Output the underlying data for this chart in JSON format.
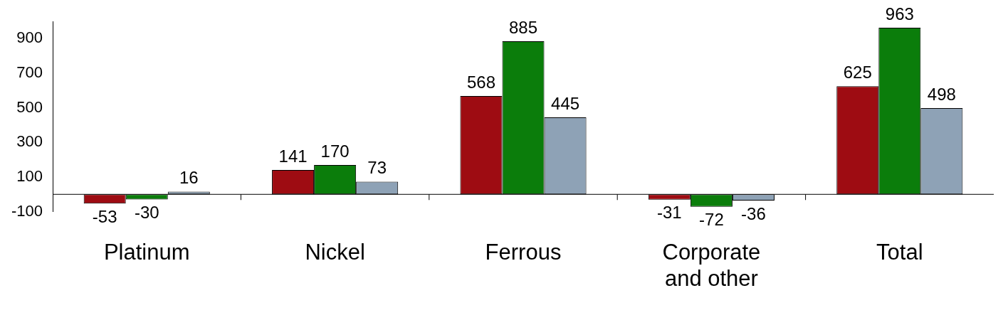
{
  "chart_data": {
    "type": "bar",
    "categories": [
      "Platinum",
      "Nickel",
      "Ferrous",
      "Corporate and other",
      "Total"
    ],
    "series": [
      {
        "color": "#9e0c12",
        "values": [
          -53,
          141,
          568,
          -31,
          625
        ]
      },
      {
        "color": "#0b7d0b",
        "values": [
          -30,
          170,
          885,
          -72,
          963
        ]
      },
      {
        "color": "#8ea2b6",
        "values": [
          16,
          73,
          445,
          -36,
          498
        ]
      }
    ],
    "ylim": [
      -100,
      1000
    ],
    "yticks": [
      -100,
      100,
      300,
      500,
      700,
      900
    ],
    "grid": false,
    "legend": false,
    "data_labels": true
  }
}
